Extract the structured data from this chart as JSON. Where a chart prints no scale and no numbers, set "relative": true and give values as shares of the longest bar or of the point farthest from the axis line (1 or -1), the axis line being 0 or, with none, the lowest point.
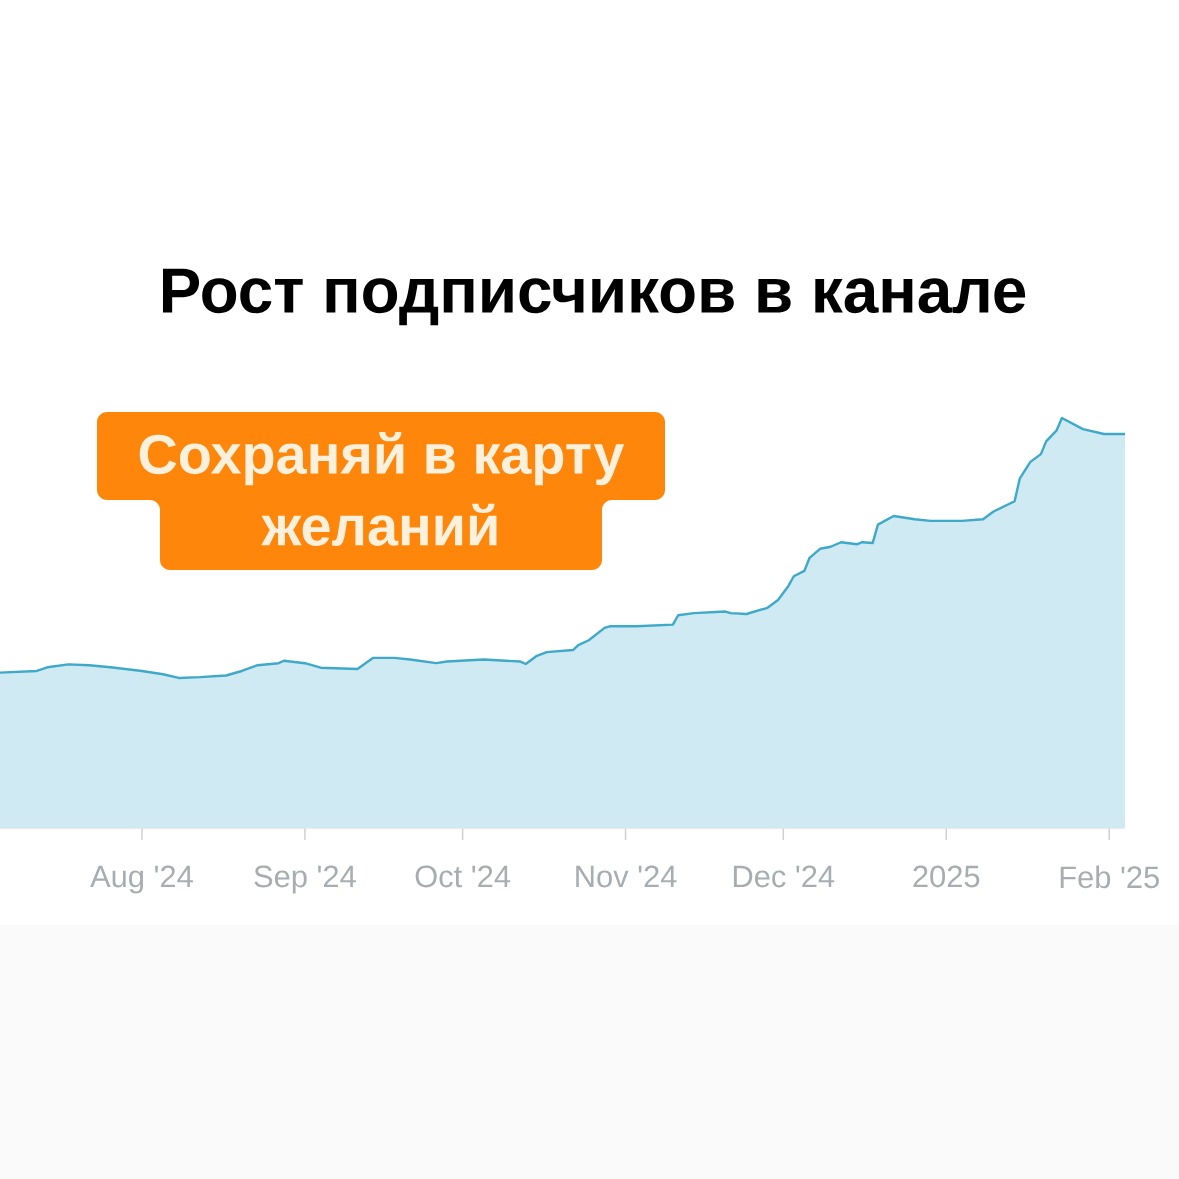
{
  "chart_data": {
    "type": "area",
    "title": "Рост подписчиков в канале",
    "annotations": [
      "Сохраняй в карту желаний"
    ],
    "relative": true,
    "color": "#3fa9c9",
    "xlim": [
      "2024-07-05",
      "2025-02-04"
    ],
    "xticks": [
      {
        "value": "2024-08-01",
        "label": "Aug '24"
      },
      {
        "value": "2024-09-01",
        "label": "Sep '24"
      },
      {
        "value": "2024-10-01",
        "label": "Oct '24"
      },
      {
        "value": "2024-11-01",
        "label": "Nov '24"
      },
      {
        "value": "2024-12-01",
        "label": "Dec '24"
      },
      {
        "value": "2025-01-01",
        "label": "2025"
      },
      {
        "value": "2025-02-01",
        "label": "Feb '25"
      }
    ],
    "x": [
      "2024-07-05",
      "2024-07-12",
      "2024-07-14",
      "2024-07-18",
      "2024-07-22",
      "2024-07-26",
      "2024-08-01",
      "2024-08-05",
      "2024-08-08",
      "2024-08-12",
      "2024-08-17",
      "2024-08-20",
      "2024-08-23",
      "2024-08-27",
      "2024-08-28",
      "2024-09-01",
      "2024-09-04",
      "2024-09-11",
      "2024-09-12",
      "2024-09-14",
      "2024-09-18",
      "2024-09-21",
      "2024-09-26",
      "2024-09-28",
      "2024-10-05",
      "2024-10-12",
      "2024-10-13",
      "2024-10-15",
      "2024-10-17",
      "2024-10-22",
      "2024-10-23",
      "2024-10-25",
      "2024-10-28",
      "2024-10-29",
      "2024-11-03",
      "2024-11-10",
      "2024-11-11",
      "2024-11-14",
      "2024-11-20",
      "2024-11-21",
      "2024-11-24",
      "2024-11-28",
      "2024-11-30",
      "2024-12-02",
      "2024-12-03",
      "2024-12-05",
      "2024-12-06",
      "2024-12-08",
      "2024-12-10",
      "2024-12-12",
      "2024-12-15",
      "2024-12-16",
      "2024-12-18",
      "2024-12-19",
      "2024-12-22",
      "2024-12-26",
      "2024-12-29",
      "2025-01-04",
      "2025-01-08",
      "2025-01-10",
      "2025-01-14",
      "2025-01-15",
      "2025-01-17",
      "2025-01-19",
      "2025-01-20",
      "2025-01-22",
      "2025-01-23",
      "2025-01-27",
      "2025-01-31",
      "2025-02-04"
    ],
    "values": [
      0.379,
      0.383,
      0.392,
      0.399,
      0.397,
      0.392,
      0.383,
      0.375,
      0.366,
      0.368,
      0.372,
      0.383,
      0.397,
      0.402,
      0.408,
      0.402,
      0.391,
      0.388,
      0.397,
      0.415,
      0.415,
      0.411,
      0.402,
      0.406,
      0.411,
      0.406,
      0.4,
      0.419,
      0.429,
      0.434,
      0.446,
      0.458,
      0.488,
      0.492,
      0.492,
      0.496,
      0.519,
      0.524,
      0.528,
      0.524,
      0.522,
      0.537,
      0.556,
      0.591,
      0.614,
      0.627,
      0.659,
      0.681,
      0.686,
      0.697,
      0.692,
      0.697,
      0.695,
      0.74,
      0.761,
      0.753,
      0.749,
      0.749,
      0.753,
      0.772,
      0.797,
      0.853,
      0.893,
      0.912,
      0.943,
      0.97,
      1.0,
      0.973,
      0.961,
      0.961
    ]
  }
}
